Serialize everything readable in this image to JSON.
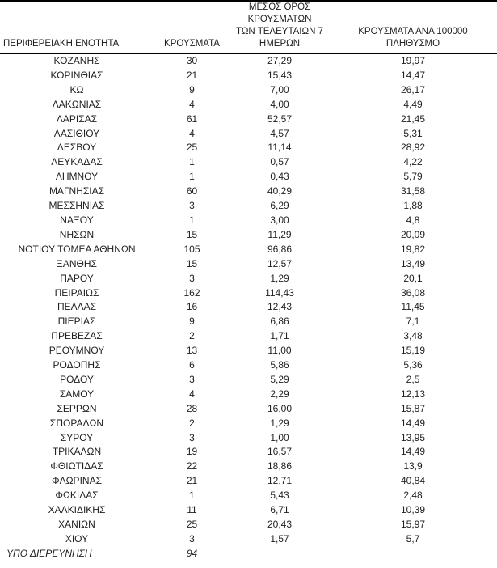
{
  "table": {
    "columns": [
      {
        "key": "region",
        "label": "ΠΕΡΙΦΕΡΕΙΑΚΗ ΕΝΟΤΗΤΑ"
      },
      {
        "key": "cases",
        "label": "ΚΡΟΥΣΜΑΤΑ"
      },
      {
        "key": "avg7",
        "label": "ΜΕΣΟΣ ΟΡΟΣ ΚΡΟΥΣΜΑΤΩΝ\nΤΩΝ ΤΕΛΕΥΤΑΙΩΝ 7\nΗΜΕΡΩΝ"
      },
      {
        "key": "per100k",
        "label": "ΚΡΟΥΣΜΑΤΑ ΑΝΑ 100000\nΠΛΗΘΥΣΜΟ"
      }
    ],
    "rows": [
      [
        "ΚΟΖΑΝΗΣ",
        "30",
        "27,29",
        "19,97"
      ],
      [
        "ΚΟΡΙΝΘΙΑΣ",
        "21",
        "15,43",
        "14,47"
      ],
      [
        "ΚΩ",
        "9",
        "7,00",
        "26,17"
      ],
      [
        "ΛΑΚΩΝΙΑΣ",
        "4",
        "4,00",
        "4,49"
      ],
      [
        "ΛΑΡΙΣΑΣ",
        "61",
        "52,57",
        "21,45"
      ],
      [
        "ΛΑΣΙΘΙΟΥ",
        "4",
        "4,57",
        "5,31"
      ],
      [
        "ΛΕΣΒΟΥ",
        "25",
        "11,14",
        "28,92"
      ],
      [
        "ΛΕΥΚΑΔΑΣ",
        "1",
        "0,57",
        "4,22"
      ],
      [
        "ΛΗΜΝΟΥ",
        "1",
        "0,43",
        "5,79"
      ],
      [
        "ΜΑΓΝΗΣΙΑΣ",
        "60",
        "40,29",
        "31,58"
      ],
      [
        "ΜΕΣΣΗΝΙΑΣ",
        "3",
        "6,29",
        "1,88"
      ],
      [
        "ΝΑΞΟΥ",
        "1",
        "3,00",
        "4,8"
      ],
      [
        "ΝΗΣΩΝ",
        "15",
        "11,29",
        "20,09"
      ],
      [
        "ΝΟΤΙΟΥ ΤΟΜΕΑ ΑΘΗΝΩΝ",
        "105",
        "96,86",
        "19,82"
      ],
      [
        "ΞΑΝΘΗΣ",
        "15",
        "12,57",
        "13,49"
      ],
      [
        "ΠΑΡΟΥ",
        "3",
        "1,29",
        "20,1"
      ],
      [
        "ΠΕΙΡΑΙΩΣ",
        "162",
        "114,43",
        "36,08"
      ],
      [
        "ΠΕΛΛΑΣ",
        "16",
        "12,43",
        "11,45"
      ],
      [
        "ΠΙΕΡΙΑΣ",
        "9",
        "6,86",
        "7,1"
      ],
      [
        "ΠΡΕΒΕΖΑΣ",
        "2",
        "1,71",
        "3,48"
      ],
      [
        "ΡΕΘΥΜΝΟΥ",
        "13",
        "11,00",
        "15,19"
      ],
      [
        "ΡΟΔΟΠΗΣ",
        "6",
        "5,86",
        "5,36"
      ],
      [
        "ΡΟΔΟΥ",
        "3",
        "5,29",
        "2,5"
      ],
      [
        "ΣΑΜΟΥ",
        "4",
        "2,29",
        "12,13"
      ],
      [
        "ΣΕΡΡΩΝ",
        "28",
        "16,00",
        "15,87"
      ],
      [
        "ΣΠΟΡΑΔΩΝ",
        "2",
        "1,29",
        "14,49"
      ],
      [
        "ΣΥΡΟΥ",
        "3",
        "1,00",
        "13,95"
      ],
      [
        "ΤΡΙΚΑΛΩΝ",
        "19",
        "16,57",
        "14,49"
      ],
      [
        "ΦΘΙΩΤΙΔΑΣ",
        "22",
        "18,86",
        "13,9"
      ],
      [
        "ΦΛΩΡΙΝΑΣ",
        "21",
        "12,71",
        "40,84"
      ],
      [
        "ΦΩΚΙΔΑΣ",
        "1",
        "5,43",
        "2,48"
      ],
      [
        "ΧΑΛΚΙΔΙΚΗΣ",
        "11",
        "6,71",
        "10,39"
      ],
      [
        "ΧΑΝΙΩΝ",
        "25",
        "20,43",
        "15,97"
      ],
      [
        "ΧΙΟΥ",
        "3",
        "1,57",
        "5,7"
      ]
    ],
    "footer_row": [
      "ΥΠΟ ΔΙΕΡΕΥΝΗΣΗ",
      "94",
      "",
      ""
    ]
  },
  "colors": {
    "background": "#ffffff",
    "text": "#1f1f1f",
    "border_dark": "#000000",
    "border_bottom_light": "#c2ccd3"
  }
}
